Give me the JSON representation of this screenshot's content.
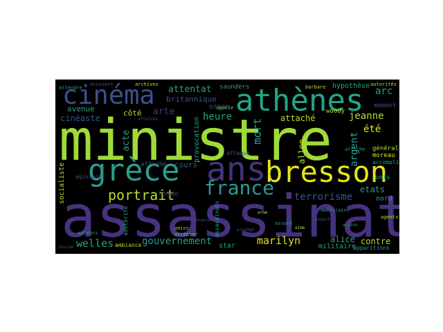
{
  "word_cloud": {
    "palette": {
      "background": "#000000",
      "page": "#ffffff",
      "green": "#a0da39",
      "purple": "#46327e",
      "teal": "#2a9d8f",
      "teal2": "#21a685",
      "blue": "#3b528b",
      "yellow": "#e4e419",
      "lime": "#b5de2b",
      "light_green": "#6ece58"
    },
    "words": {
      "ministre": "ministre",
      "assassinat": "assassinat",
      "grece": "grèce",
      "ans": "ans",
      "bresson": "bresson",
      "athenes": "athènes",
      "cinema": "cinéma",
      "france": "france",
      "portrait": "portrait",
      "gouvernement": "gouvernement",
      "welles": "welles",
      "marilyn": "marilyn",
      "terrorisme": "terrorisme",
      "attentat": "attentat",
      "britannique": "britannique",
      "heure": "heure",
      "mort": "mort",
      "arte": "arte",
      "cote": "côté",
      "avenue": "avenue",
      "cineaste": "cinéaste",
      "acte": "acte",
      "cours": "cours",
      "femme": "femme",
      "attache": "attaché",
      "jeanne": "jeanne",
      "arc": "arc",
      "ete": "été",
      "argent": "argent",
      "etats": "etats",
      "unis": "unis",
      "nord": "nord",
      "contre": "contre",
      "alice": "alice",
      "militaire": "militaire",
      "star": "star",
      "allen": "allen",
      "woody": "woody",
      "orson": "orson",
      "saunders": "saunders",
      "hypothese": "hypothèse",
      "autorites": "autorités",
      "barbare": "barbare",
      "archives": "archives",
      "attendre": "attendre",
      "accusent": "accusent",
      "moment": "moment",
      "general": "général",
      "moreau": "moreau",
      "accompli": "accompli",
      "socialiste": "socialiste",
      "agissait": "agissait",
      "affirme": "affirmé",
      "provocation": "provocation",
      "attaque": "attaque",
      "ambiance": "ambiance",
      "apparitions": "apparitions",
      "americain": "américain",
      "agents": "agents",
      "affiche": "affiche",
      "agonie": "agonie",
      "amies": "amies",
      "accepter": "accepter",
      "assure": "assuré",
      "auteurs": "auteurs",
      "austerite": "austérité",
      "affaires": "affaires",
      "arme": "arme",
      "aime": "aime",
      "accuse": "accuse",
      "arrange": "arrangé",
      "assassinats": "assassinats",
      "aspect": "aspect",
      "avance": "avance",
      "bouche": "bouche"
    }
  }
}
